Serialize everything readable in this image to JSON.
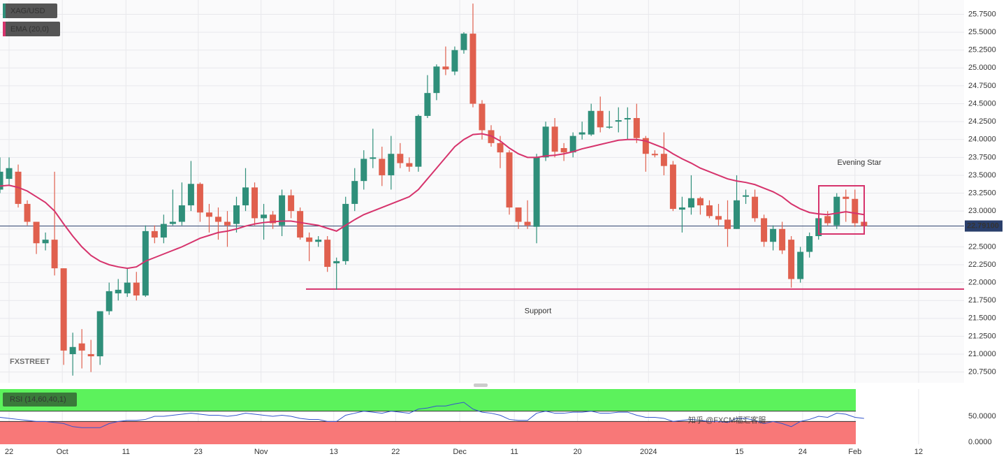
{
  "chart_data": {
    "type": "candlestick",
    "title": "XAG/USD",
    "up_color": "#2f8f7a",
    "down_color": "#e0604e",
    "open": [
      23.3,
      23.45,
      23.55,
      23.1,
      22.85,
      22.55,
      22.6,
      22.2,
      21.0,
      21.15,
      21.0,
      20.97,
      21.6,
      21.85,
      21.85,
      22.0,
      21.82,
      22.72,
      22.63,
      22.82,
      22.85,
      23.08,
      23.38,
      22.98,
      22.92,
      22.85,
      22.82,
      23.08,
      23.33,
      22.9,
      22.95,
      22.8,
      23.22,
      23.0,
      22.63,
      22.57,
      22.6,
      22.27,
      22.3,
      23.1,
      23.42,
      23.73,
      23.73,
      23.5,
      23.8,
      23.67,
      23.62,
      24.33,
      24.65,
      25.02,
      24.95,
      25.25,
      25.48,
      24.5,
      24.13,
      23.95,
      23.82,
      23.05,
      22.85,
      22.78,
      23.75,
      24.18,
      23.88,
      23.82,
      24.07,
      24.07,
      24.4,
      24.17,
      24.25,
      24.28,
      24.3,
      24.02,
      23.8,
      23.8,
      23.65,
      23.02,
      23.05,
      23.18,
      23.08,
      22.93,
      22.88,
      22.75,
      23.2,
      23.2,
      22.9,
      22.57,
      22.75,
      22.6,
      22.05,
      22.43,
      22.65,
      22.93,
      22.8,
      23.2,
      23.17,
      22.85
    ],
    "high": [
      23.75,
      23.75,
      23.65,
      23.15,
      22.85,
      22.7,
      23.55,
      22.2,
      21.3,
      21.35,
      21.2,
      21.6,
      22.0,
      22.05,
      22.2,
      22.15,
      22.8,
      22.8,
      22.95,
      23.3,
      23.4,
      23.7,
      23.4,
      23.1,
      23.05,
      23.0,
      23.2,
      23.6,
      23.4,
      23.1,
      23.0,
      23.3,
      23.3,
      23.05,
      22.7,
      22.65,
      22.65,
      22.35,
      23.2,
      23.6,
      23.85,
      24.15,
      23.9,
      24.05,
      23.95,
      23.75,
      24.35,
      24.9,
      25.05,
      25.3,
      25.3,
      25.5,
      25.9,
      24.55,
      24.2,
      24.05,
      23.85,
      23.05,
      23.15,
      23.8,
      24.25,
      24.3,
      23.95,
      24.1,
      24.25,
      24.5,
      24.6,
      24.4,
      24.45,
      24.45,
      24.5,
      24.05,
      23.85,
      24.1,
      23.7,
      23.2,
      23.5,
      23.2,
      23.15,
      23.1,
      23.15,
      23.5,
      23.3,
      23.3,
      22.95,
      22.8,
      22.85,
      22.65,
      22.5,
      22.7,
      23.0,
      23.0,
      23.25,
      23.3,
      23.3,
      23.05
    ],
    "low": [
      23.25,
      23.35,
      23.05,
      22.8,
      22.4,
      22.45,
      22.1,
      20.85,
      20.7,
      20.8,
      20.75,
      20.85,
      21.55,
      21.75,
      21.8,
      21.75,
      21.8,
      22.55,
      22.55,
      22.8,
      22.8,
      23.0,
      22.85,
      22.7,
      22.6,
      22.5,
      22.7,
      23.0,
      22.8,
      22.6,
      22.75,
      22.65,
      22.9,
      22.6,
      22.3,
      22.5,
      22.15,
      21.9,
      22.25,
      23.0,
      23.3,
      23.6,
      23.35,
      23.3,
      23.6,
      23.55,
      23.55,
      24.3,
      24.55,
      24.9,
      24.9,
      25.2,
      24.45,
      24.0,
      23.9,
      23.6,
      22.95,
      22.75,
      22.75,
      22.55,
      23.7,
      23.75,
      23.7,
      23.75,
      24.0,
      24.05,
      24.1,
      24.15,
      24.1,
      24.0,
      23.95,
      23.55,
      23.75,
      23.5,
      23.0,
      22.7,
      22.95,
      22.95,
      22.9,
      22.8,
      22.5,
      22.75,
      23.1,
      22.85,
      22.5,
      22.45,
      22.4,
      21.93,
      22.0,
      22.35,
      22.6,
      22.8,
      22.75,
      22.85,
      22.78,
      22.75
    ],
    "close": [
      23.55,
      23.6,
      23.1,
      22.85,
      22.55,
      22.6,
      22.2,
      21.05,
      21.1,
      21.05,
      20.97,
      21.6,
      21.88,
      21.9,
      22.0,
      21.82,
      22.72,
      22.63,
      22.82,
      22.85,
      23.08,
      23.38,
      22.98,
      22.92,
      22.85,
      22.8,
      23.08,
      23.33,
      22.9,
      22.95,
      22.83,
      23.22,
      23.0,
      22.63,
      22.57,
      22.6,
      22.22,
      22.3,
      23.1,
      23.42,
      23.73,
      23.75,
      23.5,
      23.8,
      23.67,
      23.62,
      24.33,
      24.65,
      25.02,
      24.98,
      25.25,
      25.48,
      24.5,
      24.13,
      23.95,
      23.82,
      23.05,
      22.85,
      22.8,
      23.75,
      24.18,
      23.83,
      23.82,
      24.05,
      24.1,
      24.4,
      24.17,
      24.18,
      24.27,
      24.3,
      24.02,
      23.8,
      23.78,
      23.63,
      23.03,
      23.05,
      23.18,
      23.08,
      22.93,
      22.88,
      22.75,
      23.15,
      23.22,
      22.9,
      22.57,
      22.75,
      22.45,
      22.05,
      22.43,
      22.65,
      22.9,
      22.83,
      23.2,
      23.17,
      22.83,
      22.79
    ],
    "ema": {
      "name": "EMA (20,0)",
      "color": "#d6336c",
      "values": [
        23.35,
        23.36,
        23.33,
        23.28,
        23.2,
        23.12,
        23.0,
        22.82,
        22.65,
        22.5,
        22.38,
        22.3,
        22.25,
        22.22,
        22.2,
        22.22,
        22.3,
        22.35,
        22.4,
        22.45,
        22.5,
        22.56,
        22.62,
        22.66,
        22.7,
        22.72,
        22.75,
        22.79,
        22.82,
        22.84,
        22.85,
        22.86,
        22.86,
        22.84,
        22.82,
        22.8,
        22.76,
        22.72,
        22.8,
        22.88,
        22.95,
        23.0,
        23.05,
        23.1,
        23.15,
        23.2,
        23.3,
        23.45,
        23.6,
        23.75,
        23.9,
        24.0,
        24.07,
        24.08,
        24.05,
        23.98,
        23.88,
        23.8,
        23.75,
        23.75,
        23.77,
        23.78,
        23.8,
        23.83,
        23.87,
        23.9,
        23.93,
        23.96,
        23.99,
        24.0,
        24.0,
        23.98,
        23.93,
        23.88,
        23.8,
        23.73,
        23.67,
        23.6,
        23.55,
        23.5,
        23.45,
        23.42,
        23.4,
        23.37,
        23.32,
        23.27,
        23.2,
        23.1,
        23.03,
        22.98,
        22.96,
        22.95,
        22.97,
        22.99,
        22.97,
        22.95
      ]
    },
    "ylim": [
      20.6,
      25.95
    ],
    "yticks": [
      {
        "value": 20.75,
        "label": "20.7500"
      },
      {
        "value": 21.0,
        "label": "21.0000"
      },
      {
        "value": 21.25,
        "label": "21.2500"
      },
      {
        "value": 21.5,
        "label": "21.5000"
      },
      {
        "value": 21.75,
        "label": "21.7500"
      },
      {
        "value": 22.0,
        "label": "22.0000"
      },
      {
        "value": 22.25,
        "label": "22.2500"
      },
      {
        "value": 22.5,
        "label": "22.5000"
      },
      {
        "value": 22.75,
        "label": "22.7500"
      },
      {
        "value": 23.0,
        "label": "23.0000"
      },
      {
        "value": 23.25,
        "label": "23.2500"
      },
      {
        "value": 23.5,
        "label": "23.5000"
      },
      {
        "value": 23.75,
        "label": "23.7500"
      },
      {
        "value": 24.0,
        "label": "24.0000"
      },
      {
        "value": 24.25,
        "label": "24.2500"
      },
      {
        "value": 24.5,
        "label": "24.5000"
      },
      {
        "value": 24.75,
        "label": "24.7500"
      },
      {
        "value": 25.0,
        "label": "25.0000"
      },
      {
        "value": 25.25,
        "label": "25.2500"
      },
      {
        "value": 25.5,
        "label": "25.5000"
      },
      {
        "value": 25.75,
        "label": "25.7500"
      }
    ],
    "xlim": [
      0,
      106
    ],
    "xticks": [
      {
        "value": 1,
        "label": "22"
      },
      {
        "value": 6.85,
        "label": "Oct"
      },
      {
        "value": 13.85,
        "label": "11"
      },
      {
        "value": 21.8,
        "label": "23"
      },
      {
        "value": 28.7,
        "label": "Nov"
      },
      {
        "value": 36.7,
        "label": "13"
      },
      {
        "value": 43.5,
        "label": "22"
      },
      {
        "value": 50.55,
        "label": "Dec"
      },
      {
        "value": 56.55,
        "label": "11"
      },
      {
        "value": 63.5,
        "label": "20"
      },
      {
        "value": 71.3,
        "label": "2024"
      },
      {
        "value": 81.3,
        "label": "15"
      },
      {
        "value": 88.25,
        "label": "24"
      },
      {
        "value": 94,
        "label": "Feb"
      },
      {
        "value": 101,
        "label": "12"
      }
    ],
    "grid": true,
    "last_price": {
      "value": 22.791,
      "label": "22.79100"
    },
    "support": {
      "value": 21.91,
      "label": "Support"
    },
    "annotation": "Evening Star",
    "rsi": {
      "name": "RSI (14,60,40,1)",
      "color": "#3355cc",
      "upper": 60,
      "lower": 40,
      "ylim": [
        0,
        100
      ],
      "yticks": [
        {
          "value": 0,
          "label": "0.0000"
        },
        {
          "value": 50,
          "label": "50.0000"
        }
      ],
      "values": [
        48,
        46,
        44,
        42,
        40,
        40,
        38,
        36,
        30,
        28,
        28,
        28,
        36,
        40,
        42,
        42,
        44,
        50,
        50,
        52,
        54,
        56,
        54,
        52,
        52,
        50,
        52,
        56,
        54,
        52,
        50,
        52,
        50,
        46,
        44,
        44,
        40,
        40,
        52,
        56,
        60,
        58,
        56,
        60,
        58,
        56,
        64,
        66,
        70,
        70,
        74,
        77,
        64,
        58,
        56,
        52,
        44,
        42,
        42,
        56,
        60,
        56,
        56,
        58,
        58,
        60,
        56,
        56,
        58,
        58,
        52,
        48,
        48,
        46,
        40,
        42,
        44,
        42,
        40,
        40,
        38,
        46,
        46,
        42,
        36,
        40,
        36,
        30,
        40,
        44,
        50,
        48,
        56,
        54,
        48,
        46
      ]
    },
    "watermarks": [
      "FXSTREET",
      "知乎 @FXCM福汇客服"
    ]
  }
}
